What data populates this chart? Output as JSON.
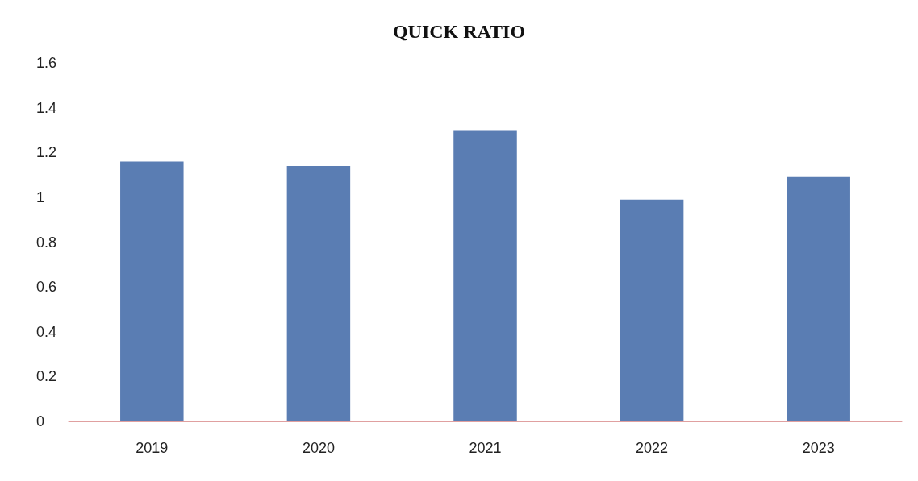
{
  "chart_data": {
    "type": "bar",
    "title": "QUICK RATIO",
    "categories": [
      "2019",
      "2020",
      "2021",
      "2022",
      "2023"
    ],
    "values": [
      1.16,
      1.14,
      1.3,
      0.99,
      1.09
    ],
    "color": "#5a7db3",
    "ylim": [
      0,
      1.6
    ],
    "yticks": [
      0,
      0.2,
      0.4,
      0.6,
      0.8,
      1,
      1.2,
      1.4,
      1.6
    ],
    "grid": false
  }
}
